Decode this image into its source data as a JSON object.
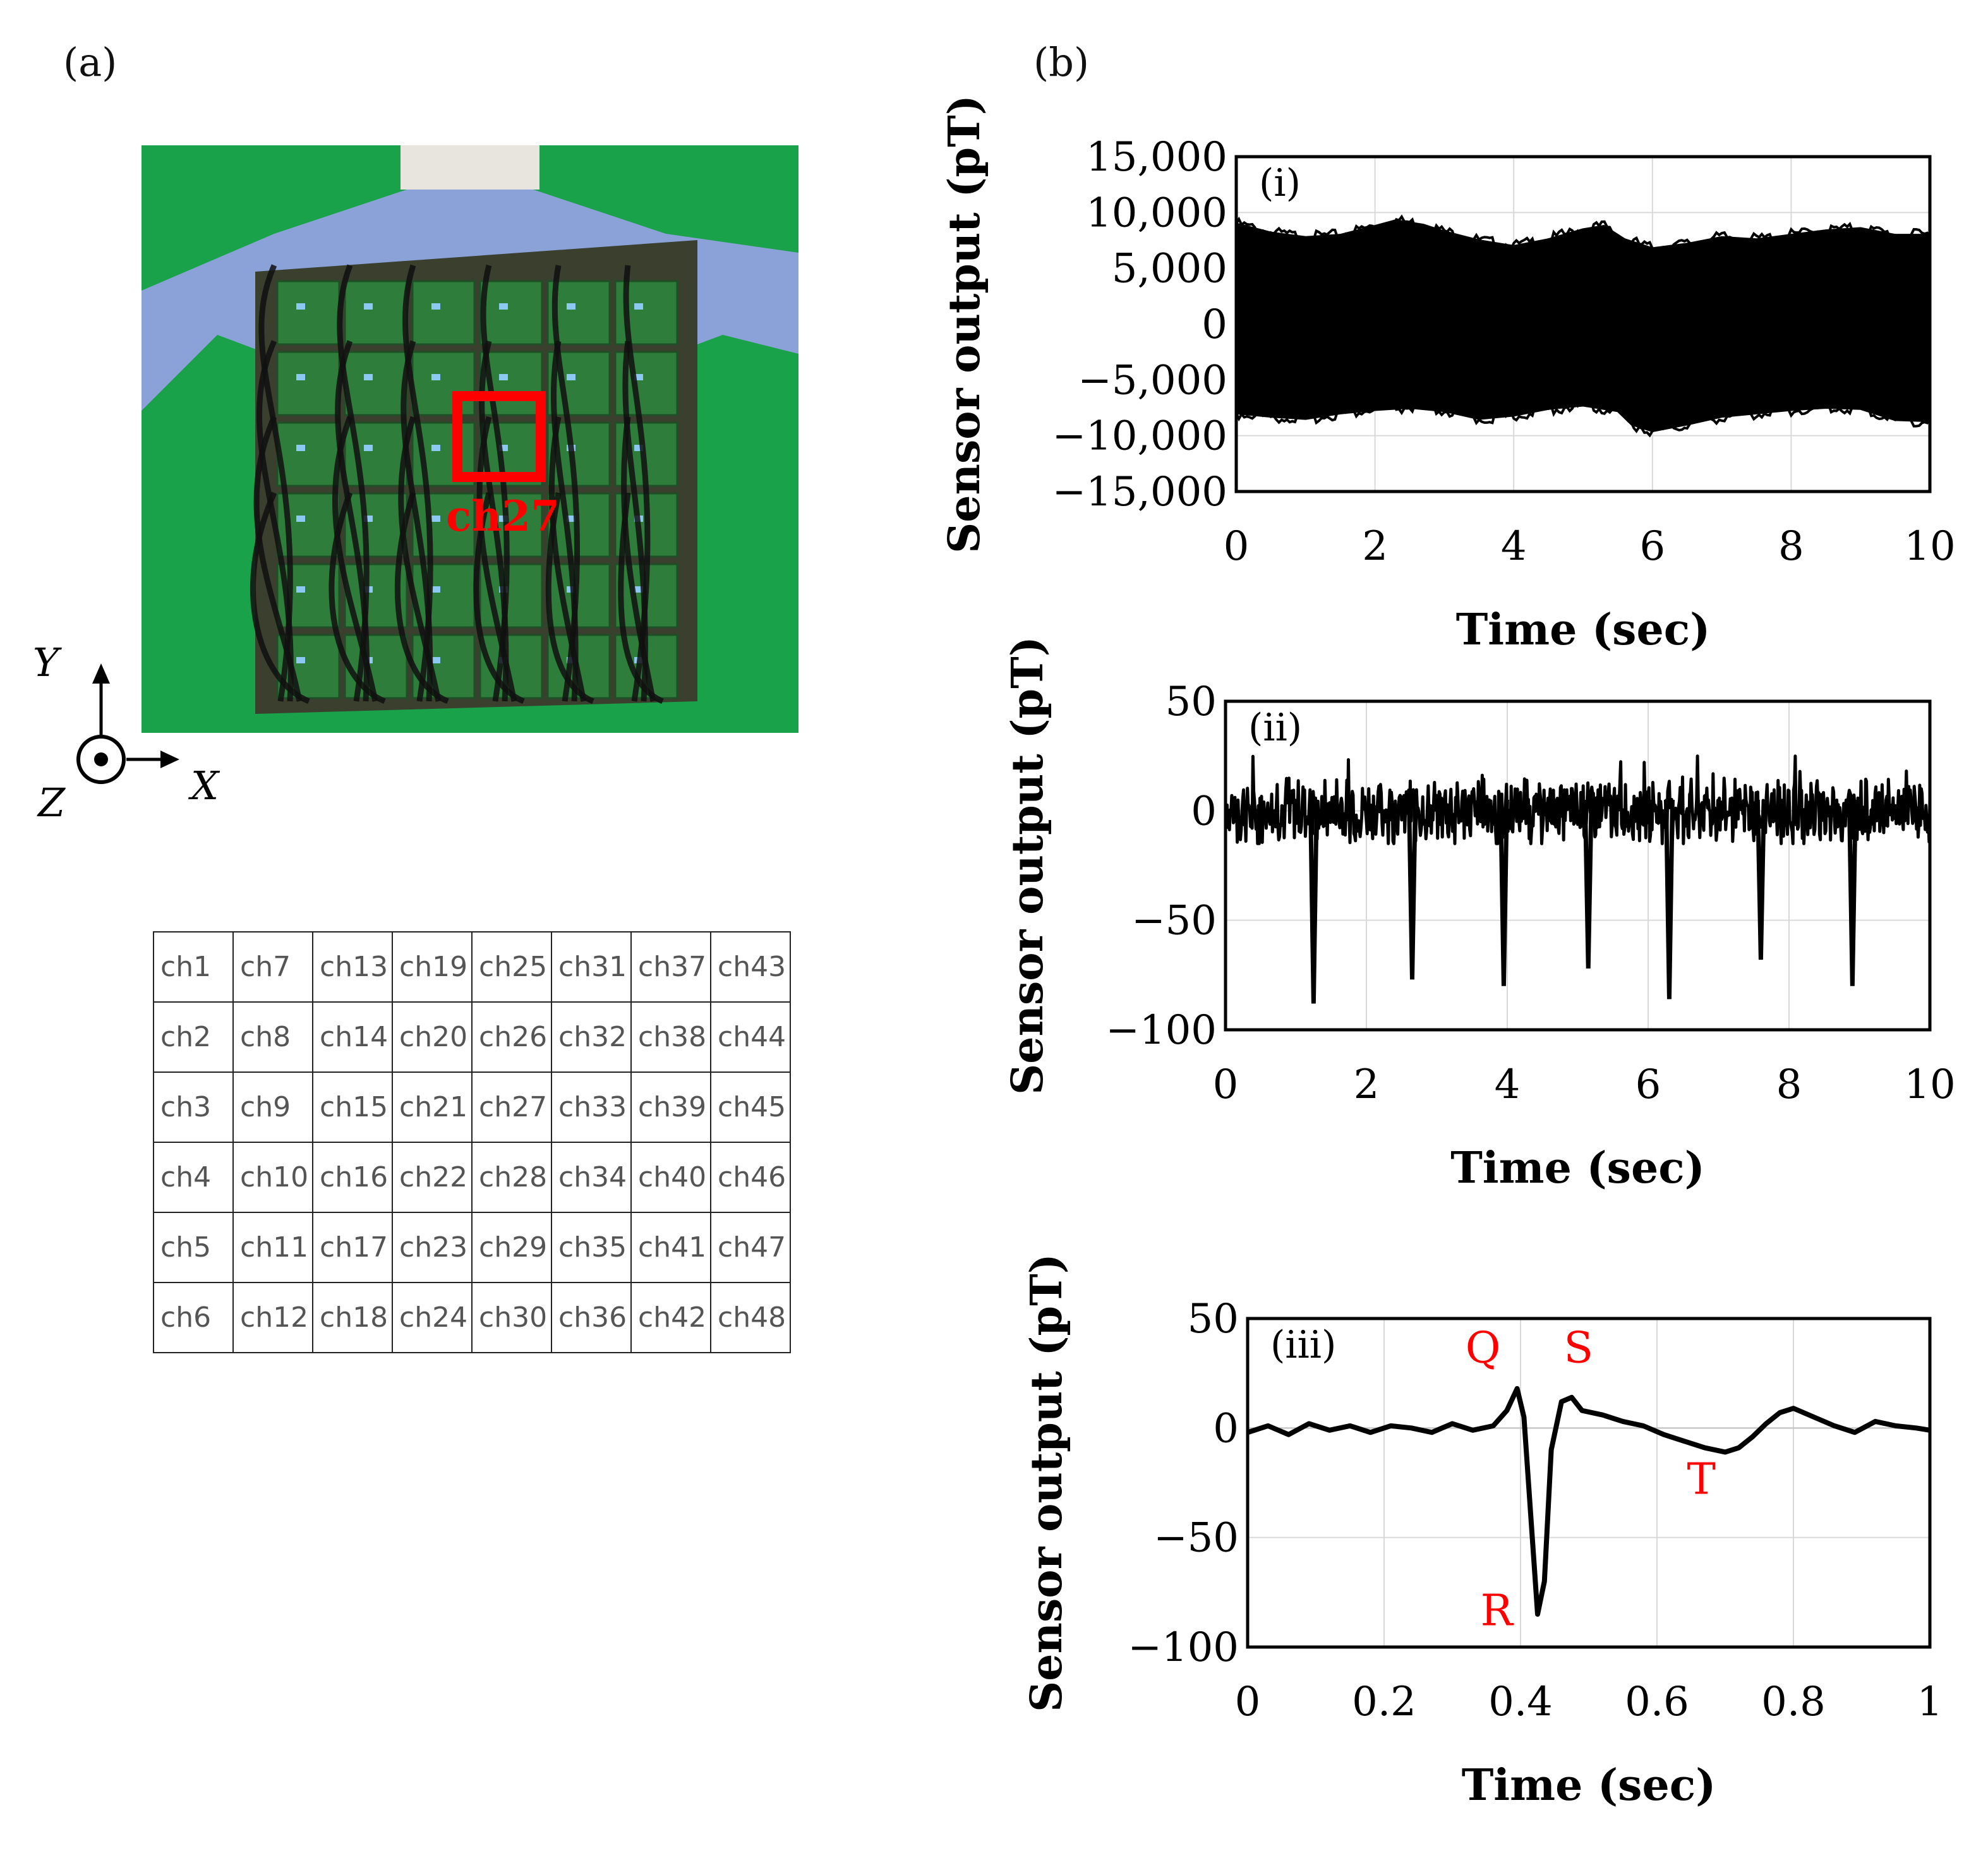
{
  "panels": {
    "a_label": "(a)",
    "b_label": "(b)"
  },
  "photo": {
    "highlight_label": "ch27",
    "highlight_color": "#ff0000",
    "background_color": "#1aa24a"
  },
  "axes_indicator": {
    "y_label": "Y",
    "x_label": "X",
    "z_label": "Z"
  },
  "channel_grid": [
    [
      "ch1",
      "ch7",
      "ch13",
      "ch19",
      "ch25",
      "ch31",
      "ch37",
      "ch43"
    ],
    [
      "ch2",
      "ch8",
      "ch14",
      "ch20",
      "ch26",
      "ch32",
      "ch38",
      "ch44"
    ],
    [
      "ch3",
      "ch9",
      "ch15",
      "ch21",
      "ch27",
      "ch33",
      "ch39",
      "ch45"
    ],
    [
      "ch4",
      "ch10",
      "ch16",
      "ch22",
      "ch28",
      "ch34",
      "ch40",
      "ch46"
    ],
    [
      "ch5",
      "ch11",
      "ch17",
      "ch23",
      "ch29",
      "ch35",
      "ch41",
      "ch47"
    ],
    [
      "ch6",
      "ch12",
      "ch18",
      "ch24",
      "ch30",
      "ch36",
      "ch42",
      "ch48"
    ]
  ],
  "chart_data": [
    {
      "type": "area",
      "panel": "(i)",
      "xlabel": "Time (sec)",
      "ylabel": "Sensor output (pT)",
      "xlim": [
        0,
        10
      ],
      "ylim": [
        -15000,
        15000
      ],
      "xticks": [
        0,
        2,
        4,
        6,
        8,
        10
      ],
      "yticks": [
        -15000,
        -10000,
        -5000,
        0,
        5000,
        10000,
        15000
      ],
      "ytick_labels": [
        "−15,000",
        "−10,000",
        "−5,000",
        "0",
        "5,000",
        "10,000",
        "15,000"
      ],
      "grid": true,
      "series": [
        {
          "name": "upper envelope",
          "x": [
            0,
            0.5,
            1,
            1.5,
            2,
            2.3,
            2.7,
            3,
            3.5,
            4,
            4.5,
            5,
            5.3,
            5.6,
            6,
            6.5,
            7,
            7.5,
            8,
            8.5,
            9,
            9.5,
            10
          ],
          "values": [
            9000,
            8200,
            7800,
            8000,
            8800,
            9300,
            8900,
            8300,
            7500,
            7000,
            7600,
            8500,
            8800,
            7600,
            6800,
            7200,
            7800,
            7600,
            8000,
            8400,
            8600,
            8000,
            8000
          ]
        },
        {
          "name": "lower envelope",
          "x": [
            0,
            0.5,
            1,
            1.5,
            2,
            2.5,
            3,
            3.5,
            4,
            4.5,
            5,
            5.5,
            5.7,
            6,
            6.5,
            7,
            7.5,
            8,
            8.5,
            9,
            9.5,
            10
          ],
          "values": [
            -8000,
            -8300,
            -8500,
            -8000,
            -7700,
            -7500,
            -7800,
            -8500,
            -8200,
            -7600,
            -7300,
            -7800,
            -9000,
            -9600,
            -9000,
            -8300,
            -8000,
            -7700,
            -7500,
            -7600,
            -8600,
            -8700
          ]
        }
      ]
    },
    {
      "type": "line",
      "panel": "(ii)",
      "xlabel": "Time (sec)",
      "ylabel": "Sensor output (pT)",
      "xlim": [
        0,
        10
      ],
      "ylim": [
        -100,
        50
      ],
      "xticks": [
        0,
        2,
        4,
        6,
        8,
        10
      ],
      "yticks": [
        -100,
        -50,
        0,
        50
      ],
      "ytick_labels": [
        "−100",
        "−50",
        "0",
        "50"
      ],
      "grid": true,
      "baseline": {
        "min": -15,
        "max": 25
      },
      "spikes": [
        {
          "x": 1.25,
          "value": -88
        },
        {
          "x": 2.65,
          "value": -77
        },
        {
          "x": 3.95,
          "value": -80
        },
        {
          "x": 5.15,
          "value": -72
        },
        {
          "x": 6.3,
          "value": -86
        },
        {
          "x": 7.6,
          "value": -68
        },
        {
          "x": 8.9,
          "value": -80
        }
      ]
    },
    {
      "type": "line",
      "panel": "(iii)",
      "xlabel": "Time (sec)",
      "ylabel": "Sensor output (pT)",
      "xlim": [
        0,
        1
      ],
      "ylim": [
        -100,
        50
      ],
      "xticks": [
        0,
        0.2,
        0.4,
        0.6,
        0.8,
        1
      ],
      "xtick_labels": [
        "0",
        "0.2",
        "0.4",
        "0.6",
        "0.8",
        "1"
      ],
      "yticks": [
        -100,
        -50,
        0,
        50
      ],
      "ytick_labels": [
        "−100",
        "−50",
        "0",
        "50"
      ],
      "grid": true,
      "x": [
        0,
        0.03,
        0.06,
        0.09,
        0.12,
        0.15,
        0.18,
        0.21,
        0.24,
        0.27,
        0.3,
        0.33,
        0.36,
        0.38,
        0.395,
        0.405,
        0.415,
        0.425,
        0.435,
        0.445,
        0.46,
        0.475,
        0.49,
        0.52,
        0.55,
        0.58,
        0.61,
        0.64,
        0.67,
        0.7,
        0.72,
        0.74,
        0.76,
        0.78,
        0.8,
        0.83,
        0.86,
        0.89,
        0.92,
        0.95,
        0.98,
        1.0
      ],
      "values": [
        -2,
        1,
        -3,
        2,
        -1,
        1,
        -2,
        1,
        0,
        -2,
        2,
        -1,
        1,
        8,
        18,
        5,
        -40,
        -85,
        -70,
        -10,
        12,
        14,
        8,
        6,
        3,
        1,
        -3,
        -6,
        -9,
        -11,
        -9,
        -4,
        2,
        7,
        9,
        5,
        1,
        -2,
        3,
        1,
        0,
        -1
      ],
      "annotations": [
        {
          "text": "Q",
          "color": "#ff0000"
        },
        {
          "text": "S",
          "color": "#ff0000"
        },
        {
          "text": "R",
          "color": "#ff0000"
        },
        {
          "text": "T",
          "color": "#ff0000"
        }
      ]
    }
  ]
}
